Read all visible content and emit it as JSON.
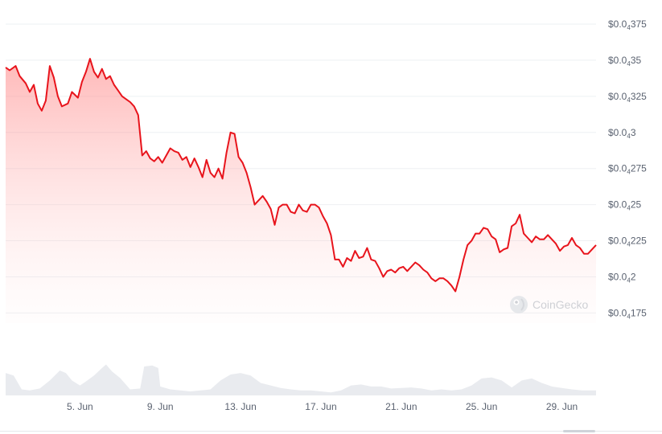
{
  "watermark": {
    "text": "CoinGecko",
    "icon": "coingecko-logo-icon"
  },
  "colors": {
    "line": "#e8141c",
    "fill": "#ff8a8a",
    "volume": "#e9ebef",
    "grid": "#eef0f3"
  },
  "chart_data": {
    "type": "line",
    "title": "",
    "xlabel": "",
    "ylabel": "",
    "y_unit_note": "values in USD; $0.0₄35 = 0.000035",
    "ylim": [
      1.68e-05,
      3.85e-05
    ],
    "grid": true,
    "legend": "none",
    "yticks": [
      {
        "value": 3.75e-05,
        "prefix": "$0.0",
        "sub": "4",
        "suffix": "375"
      },
      {
        "value": 3.5e-05,
        "prefix": "$0.0",
        "sub": "4",
        "suffix": "35"
      },
      {
        "value": 3.25e-05,
        "prefix": "$0.0",
        "sub": "4",
        "suffix": "325"
      },
      {
        "value": 3e-05,
        "prefix": "$0.0",
        "sub": "4",
        "suffix": "3"
      },
      {
        "value": 2.75e-05,
        "prefix": "$0.0",
        "sub": "4",
        "suffix": "275"
      },
      {
        "value": 2.5e-05,
        "prefix": "$0.0",
        "sub": "4",
        "suffix": "25"
      },
      {
        "value": 2.25e-05,
        "prefix": "$0.0",
        "sub": "4",
        "suffix": "225"
      },
      {
        "value": 2e-05,
        "prefix": "$0.0",
        "sub": "4",
        "suffix": "2"
      },
      {
        "value": 1.75e-05,
        "prefix": "$0.0",
        "sub": "4",
        "suffix": "175"
      }
    ],
    "xticks": [
      {
        "x": 5,
        "label": "5. Jun"
      },
      {
        "x": 9,
        "label": "9. Jun"
      },
      {
        "x": 13,
        "label": "13. Jun"
      },
      {
        "x": 17,
        "label": "17. Jun"
      },
      {
        "x": 21,
        "label": "21. Jun"
      },
      {
        "x": 25,
        "label": "25. Jun"
      },
      {
        "x": 29,
        "label": "29. Jun"
      }
    ],
    "xlim": [
      1.3,
      30.7
    ],
    "series": [
      {
        "type": "line",
        "points": [
          [
            1.3,
            3.45e-05
          ],
          [
            1.5,
            3.43e-05
          ],
          [
            1.8,
            3.46e-05
          ],
          [
            2.0,
            3.39e-05
          ],
          [
            2.3,
            3.34e-05
          ],
          [
            2.5,
            3.28e-05
          ],
          [
            2.7,
            3.33e-05
          ],
          [
            2.9,
            3.2e-05
          ],
          [
            3.1,
            3.15e-05
          ],
          [
            3.3,
            3.22e-05
          ],
          [
            3.5,
            3.46e-05
          ],
          [
            3.7,
            3.38e-05
          ],
          [
            3.9,
            3.25e-05
          ],
          [
            4.1,
            3.18e-05
          ],
          [
            4.4,
            3.2e-05
          ],
          [
            4.6,
            3.28e-05
          ],
          [
            4.9,
            3.24e-05
          ],
          [
            5.1,
            3.35e-05
          ],
          [
            5.3,
            3.42e-05
          ],
          [
            5.5,
            3.51e-05
          ],
          [
            5.7,
            3.42e-05
          ],
          [
            5.9,
            3.38e-05
          ],
          [
            6.1,
            3.44e-05
          ],
          [
            6.3,
            3.37e-05
          ],
          [
            6.5,
            3.39e-05
          ],
          [
            6.7,
            3.33e-05
          ],
          [
            6.9,
            3.29e-05
          ],
          [
            7.1,
            3.25e-05
          ],
          [
            7.3,
            3.23e-05
          ],
          [
            7.5,
            3.21e-05
          ],
          [
            7.7,
            3.18e-05
          ],
          [
            7.9,
            3.12e-05
          ],
          [
            8.0,
            2.98e-05
          ],
          [
            8.1,
            2.84e-05
          ],
          [
            8.3,
            2.87e-05
          ],
          [
            8.5,
            2.82e-05
          ],
          [
            8.7,
            2.8e-05
          ],
          [
            8.9,
            2.83e-05
          ],
          [
            9.1,
            2.79e-05
          ],
          [
            9.3,
            2.84e-05
          ],
          [
            9.5,
            2.89e-05
          ],
          [
            9.7,
            2.87e-05
          ],
          [
            9.9,
            2.86e-05
          ],
          [
            10.1,
            2.81e-05
          ],
          [
            10.3,
            2.83e-05
          ],
          [
            10.5,
            2.76e-05
          ],
          [
            10.7,
            2.82e-05
          ],
          [
            10.9,
            2.76e-05
          ],
          [
            11.1,
            2.69e-05
          ],
          [
            11.3,
            2.81e-05
          ],
          [
            11.5,
            2.72e-05
          ],
          [
            11.7,
            2.69e-05
          ],
          [
            11.9,
            2.75e-05
          ],
          [
            12.1,
            2.68e-05
          ],
          [
            12.3,
            2.86e-05
          ],
          [
            12.5,
            3e-05
          ],
          [
            12.7,
            2.99e-05
          ],
          [
            12.9,
            2.83e-05
          ],
          [
            13.1,
            2.79e-05
          ],
          [
            13.3,
            2.72e-05
          ],
          [
            13.5,
            2.62e-05
          ],
          [
            13.7,
            2.5e-05
          ],
          [
            13.9,
            2.53e-05
          ],
          [
            14.1,
            2.56e-05
          ],
          [
            14.3,
            2.52e-05
          ],
          [
            14.5,
            2.47e-05
          ],
          [
            14.7,
            2.36e-05
          ],
          [
            14.9,
            2.48e-05
          ],
          [
            15.1,
            2.5e-05
          ],
          [
            15.3,
            2.5e-05
          ],
          [
            15.5,
            2.45e-05
          ],
          [
            15.7,
            2.44e-05
          ],
          [
            15.9,
            2.5e-05
          ],
          [
            16.1,
            2.46e-05
          ],
          [
            16.3,
            2.45e-05
          ],
          [
            16.5,
            2.5e-05
          ],
          [
            16.7,
            2.5e-05
          ],
          [
            16.9,
            2.48e-05
          ],
          [
            17.1,
            2.42e-05
          ],
          [
            17.3,
            2.37e-05
          ],
          [
            17.5,
            2.29e-05
          ],
          [
            17.7,
            2.12e-05
          ],
          [
            17.9,
            2.12e-05
          ],
          [
            18.1,
            2.07e-05
          ],
          [
            18.3,
            2.13e-05
          ],
          [
            18.5,
            2.11e-05
          ],
          [
            18.7,
            2.18e-05
          ],
          [
            18.9,
            2.13e-05
          ],
          [
            19.1,
            2.14e-05
          ],
          [
            19.3,
            2.2e-05
          ],
          [
            19.5,
            2.12e-05
          ],
          [
            19.7,
            2.11e-05
          ],
          [
            19.9,
            2.06e-05
          ],
          [
            20.1,
            2e-05
          ],
          [
            20.3,
            2.04e-05
          ],
          [
            20.5,
            2.05e-05
          ],
          [
            20.7,
            2.03e-05
          ],
          [
            20.9,
            2.06e-05
          ],
          [
            21.1,
            2.07e-05
          ],
          [
            21.3,
            2.04e-05
          ],
          [
            21.5,
            2.07e-05
          ],
          [
            21.7,
            2.1e-05
          ],
          [
            21.9,
            2.08e-05
          ],
          [
            22.1,
            2.05e-05
          ],
          [
            22.3,
            2.03e-05
          ],
          [
            22.5,
            1.99e-05
          ],
          [
            22.7,
            1.97e-05
          ],
          [
            22.9,
            1.99e-05
          ],
          [
            23.1,
            1.99e-05
          ],
          [
            23.3,
            1.97e-05
          ],
          [
            23.5,
            1.94e-05
          ],
          [
            23.7,
            1.9e-05
          ],
          [
            23.9,
            2e-05
          ],
          [
            24.1,
            2.12e-05
          ],
          [
            24.3,
            2.22e-05
          ],
          [
            24.5,
            2.25e-05
          ],
          [
            24.7,
            2.3e-05
          ],
          [
            24.9,
            2.3e-05
          ],
          [
            25.1,
            2.34e-05
          ],
          [
            25.3,
            2.33e-05
          ],
          [
            25.5,
            2.28e-05
          ],
          [
            25.7,
            2.26e-05
          ],
          [
            25.9,
            2.17e-05
          ],
          [
            26.1,
            2.19e-05
          ],
          [
            26.3,
            2.2e-05
          ],
          [
            26.5,
            2.35e-05
          ],
          [
            26.7,
            2.37e-05
          ],
          [
            26.9,
            2.43e-05
          ],
          [
            27.1,
            2.3e-05
          ],
          [
            27.3,
            2.27e-05
          ],
          [
            27.5,
            2.24e-05
          ],
          [
            27.7,
            2.28e-05
          ],
          [
            27.9,
            2.26e-05
          ],
          [
            28.1,
            2.26e-05
          ],
          [
            28.3,
            2.29e-05
          ],
          [
            28.5,
            2.26e-05
          ],
          [
            28.7,
            2.23e-05
          ],
          [
            28.9,
            2.18e-05
          ],
          [
            29.1,
            2.21e-05
          ],
          [
            29.3,
            2.22e-05
          ],
          [
            29.5,
            2.27e-05
          ],
          [
            29.7,
            2.22e-05
          ],
          [
            29.9,
            2.2e-05
          ],
          [
            30.1,
            2.16e-05
          ],
          [
            30.3,
            2.16e-05
          ],
          [
            30.5,
            2.19e-05
          ],
          [
            30.7,
            2.22e-05
          ]
        ]
      }
    ],
    "volume": {
      "description": "relative trading volume bars (no scale shown)",
      "points": [
        [
          1.3,
          0.45
        ],
        [
          1.7,
          0.4
        ],
        [
          2.1,
          0.12
        ],
        [
          2.5,
          0.1
        ],
        [
          3.0,
          0.14
        ],
        [
          3.5,
          0.3
        ],
        [
          4.0,
          0.5
        ],
        [
          4.3,
          0.45
        ],
        [
          4.6,
          0.3
        ],
        [
          5.0,
          0.2
        ],
        [
          5.3,
          0.28
        ],
        [
          5.7,
          0.4
        ],
        [
          6.1,
          0.55
        ],
        [
          6.3,
          0.62
        ],
        [
          6.6,
          0.48
        ],
        [
          7.0,
          0.35
        ],
        [
          7.5,
          0.12
        ],
        [
          8.0,
          0.14
        ],
        [
          8.2,
          0.58
        ],
        [
          8.6,
          0.6
        ],
        [
          8.9,
          0.55
        ],
        [
          9.0,
          0.18
        ],
        [
          9.5,
          0.12
        ],
        [
          10.0,
          0.1
        ],
        [
          10.5,
          0.08
        ],
        [
          11.0,
          0.1
        ],
        [
          11.5,
          0.12
        ],
        [
          12.0,
          0.3
        ],
        [
          12.5,
          0.42
        ],
        [
          13.0,
          0.45
        ],
        [
          13.5,
          0.4
        ],
        [
          14.0,
          0.25
        ],
        [
          14.5,
          0.2
        ],
        [
          15.0,
          0.15
        ],
        [
          15.5,
          0.12
        ],
        [
          16.0,
          0.1
        ],
        [
          16.5,
          0.1
        ],
        [
          17.0,
          0.08
        ],
        [
          17.5,
          0.06
        ],
        [
          18.0,
          0.1
        ],
        [
          18.5,
          0.2
        ],
        [
          19.0,
          0.22
        ],
        [
          19.5,
          0.18
        ],
        [
          20.0,
          0.18
        ],
        [
          20.5,
          0.14
        ],
        [
          21.0,
          0.15
        ],
        [
          21.5,
          0.16
        ],
        [
          22.0,
          0.14
        ],
        [
          22.5,
          0.1
        ],
        [
          23.0,
          0.12
        ],
        [
          23.5,
          0.1
        ],
        [
          24.0,
          0.12
        ],
        [
          24.5,
          0.2
        ],
        [
          25.0,
          0.34
        ],
        [
          25.5,
          0.36
        ],
        [
          26.0,
          0.3
        ],
        [
          26.5,
          0.16
        ],
        [
          27.0,
          0.3
        ],
        [
          27.5,
          0.34
        ],
        [
          28.0,
          0.25
        ],
        [
          28.5,
          0.18
        ],
        [
          29.0,
          0.15
        ],
        [
          29.5,
          0.12
        ],
        [
          30.0,
          0.1
        ],
        [
          30.7,
          0.1
        ]
      ]
    }
  }
}
